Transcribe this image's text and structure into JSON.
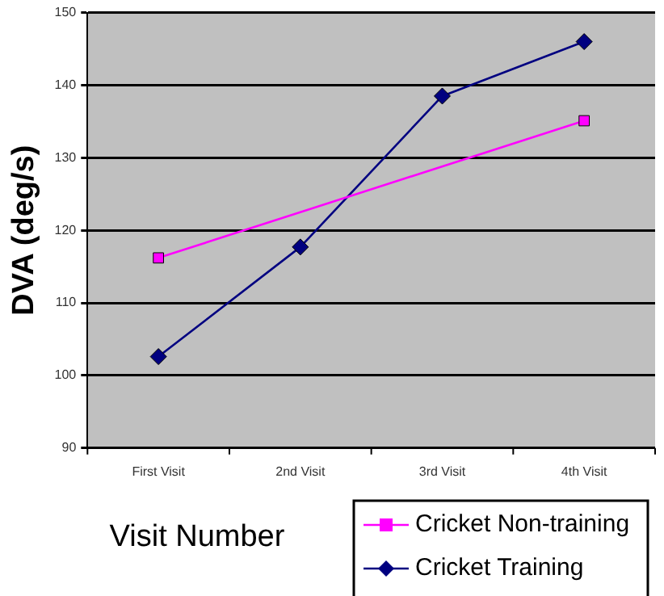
{
  "chart_data": {
    "type": "line",
    "xlabel": "Visit Number",
    "ylabel": "DVA (deg/s)",
    "categories": [
      "First Visit",
      "2nd Visit",
      "3rd Visit",
      "4th Visit"
    ],
    "series": [
      {
        "name": "Cricket Non-training",
        "color": "#ff00ff",
        "marker": "square",
        "values": [
          116.2,
          null,
          null,
          135.1
        ]
      },
      {
        "name": "Cricket Training",
        "color": "#000080",
        "marker": "diamond",
        "values": [
          102.6,
          117.7,
          138.5,
          146
        ]
      }
    ],
    "ylim": [
      90,
      150
    ],
    "yticks": [
      90,
      100,
      110,
      120,
      130,
      140,
      150
    ],
    "grid": "y",
    "legend": "bottom right",
    "line_style": "solid"
  }
}
